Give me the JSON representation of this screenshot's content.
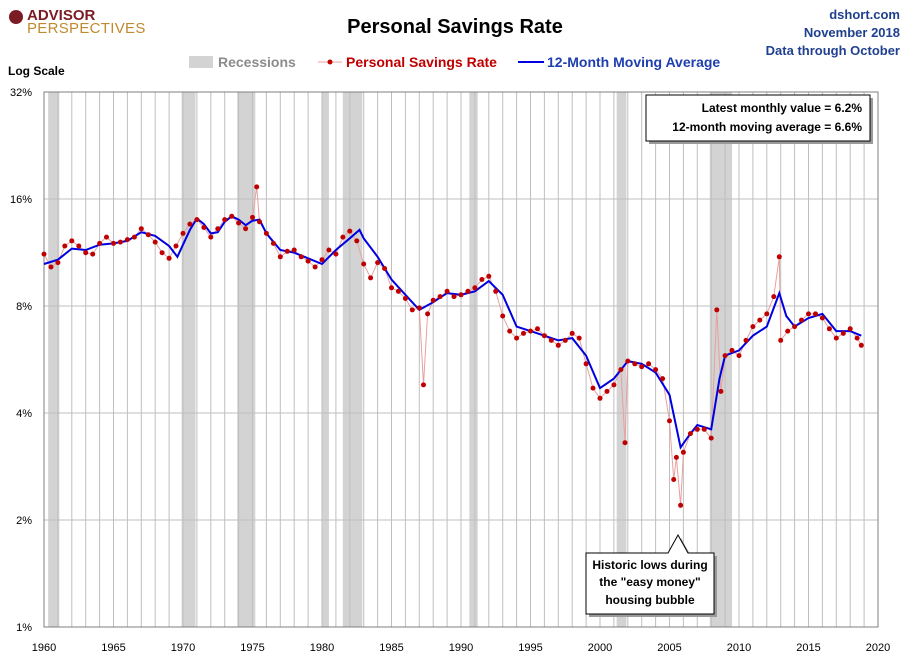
{
  "header": {
    "logo_top": "ADVISOR",
    "logo_bottom": "PERSPECTIVES",
    "title": "Personal Savings Rate",
    "source": "dshort.com",
    "date": "November 2018",
    "data_through": "Data through October"
  },
  "legend": {
    "recessions": "Recessions",
    "series": "Personal Savings Rate",
    "average": "12-Month Moving Average"
  },
  "axis_note": "Log Scale",
  "stats_box": {
    "line1": "Latest monthly value = 6.2%",
    "line2": "12-month moving average = 6.6%"
  },
  "callout": {
    "line1": "Historic lows during",
    "line2": "the \"easy money\"",
    "line3": "housing bubble"
  },
  "colors": {
    "series": "#c00000",
    "average": "#0000e0",
    "recession": "#d3d3d3",
    "grid": "#bfbfbf",
    "legend_series_text": "#c00000",
    "legend_average_text": "#1f3fb0"
  },
  "chart_data": {
    "type": "line",
    "title": "Personal Savings Rate",
    "ylabel": "Log Scale",
    "yscale": "log",
    "xlim": [
      1960,
      2020
    ],
    "ylim": [
      1,
      32
    ],
    "xticks": [
      1960,
      1965,
      1970,
      1975,
      1980,
      1985,
      1990,
      1995,
      2000,
      2005,
      2010,
      2015,
      2020
    ],
    "yticks": [
      1,
      2,
      4,
      8,
      16,
      32
    ],
    "ytick_labels": [
      "1%",
      "2%",
      "4%",
      "8%",
      "16%",
      "32%"
    ],
    "grid": true,
    "recessions": [
      [
        1960.3,
        1961.1
      ],
      [
        1969.9,
        1970.9
      ],
      [
        1973.9,
        1975.2
      ],
      [
        1980.0,
        1980.5
      ],
      [
        1981.5,
        1982.9
      ],
      [
        1990.6,
        1991.2
      ],
      [
        2001.2,
        2001.9
      ],
      [
        2007.9,
        2009.5
      ]
    ],
    "series": [
      {
        "name": "Personal Savings Rate",
        "x": [
          1960.0,
          1960.5,
          1961.0,
          1961.5,
          1962.0,
          1962.5,
          1963.0,
          1963.5,
          1964.0,
          1964.5,
          1965.0,
          1965.5,
          1966.0,
          1966.5,
          1967.0,
          1967.5,
          1968.0,
          1968.5,
          1969.0,
          1969.5,
          1970.0,
          1970.5,
          1971.0,
          1971.5,
          1972.0,
          1972.5,
          1973.0,
          1973.5,
          1974.0,
          1974.5,
          1975.0,
          1975.3,
          1975.5,
          1976.0,
          1976.5,
          1977.0,
          1977.5,
          1978.0,
          1978.5,
          1979.0,
          1979.5,
          1980.0,
          1980.5,
          1981.0,
          1981.5,
          1982.0,
          1982.5,
          1983.0,
          1983.5,
          1984.0,
          1984.5,
          1985.0,
          1985.5,
          1986.0,
          1986.5,
          1987.0,
          1987.3,
          1987.6,
          1988.0,
          1988.5,
          1989.0,
          1989.5,
          1990.0,
          1990.5,
          1991.0,
          1991.5,
          1992.0,
          1992.5,
          1993.0,
          1993.5,
          1994.0,
          1994.5,
          1995.0,
          1995.5,
          1996.0,
          1996.5,
          1997.0,
          1997.5,
          1998.0,
          1998.5,
          1999.0,
          1999.5,
          2000.0,
          2000.5,
          2001.0,
          2001.5,
          2001.8,
          2002.0,
          2002.5,
          2003.0,
          2003.5,
          2004.0,
          2004.5,
          2005.0,
          2005.3,
          2005.5,
          2005.8,
          2006.0,
          2006.5,
          2007.0,
          2007.5,
          2008.0,
          2008.4,
          2008.7,
          2009.0,
          2009.5,
          2010.0,
          2010.5,
          2011.0,
          2011.5,
          2012.0,
          2012.5,
          2012.9,
          2013.0,
          2013.5,
          2014.0,
          2014.5,
          2015.0,
          2015.5,
          2016.0,
          2016.5,
          2017.0,
          2017.5,
          2018.0,
          2018.5,
          2018.8
        ],
        "values": [
          11.2,
          10.3,
          10.6,
          11.8,
          12.2,
          11.8,
          11.3,
          11.2,
          12.0,
          12.5,
          12.0,
          12.1,
          12.3,
          12.5,
          13.2,
          12.7,
          12.1,
          11.3,
          10.9,
          11.8,
          12.8,
          13.6,
          14.0,
          13.3,
          12.5,
          13.2,
          14.0,
          14.3,
          13.7,
          13.2,
          14.2,
          17.3,
          13.8,
          12.8,
          12.0,
          11.0,
          11.4,
          11.5,
          11.0,
          10.7,
          10.3,
          10.8,
          11.5,
          11.2,
          12.5,
          13.0,
          12.2,
          10.5,
          9.6,
          10.6,
          10.2,
          9.0,
          8.8,
          8.4,
          7.8,
          7.9,
          4.8,
          7.6,
          8.3,
          8.5,
          8.8,
          8.5,
          8.6,
          8.8,
          9.0,
          9.5,
          9.7,
          8.8,
          7.5,
          6.8,
          6.5,
          6.7,
          6.8,
          6.9,
          6.6,
          6.4,
          6.2,
          6.4,
          6.7,
          6.5,
          5.5,
          4.7,
          4.4,
          4.6,
          4.8,
          5.3,
          3.3,
          5.6,
          5.5,
          5.4,
          5.5,
          5.3,
          5.0,
          3.8,
          2.6,
          3.0,
          2.2,
          3.1,
          3.5,
          3.6,
          3.6,
          3.4,
          7.8,
          4.6,
          5.8,
          6.0,
          5.8,
          6.4,
          7.0,
          7.3,
          7.6,
          8.5,
          11.0,
          6.4,
          6.8,
          7.0,
          7.3,
          7.6,
          7.6,
          7.4,
          6.9,
          6.5,
          6.7,
          6.9,
          6.5,
          6.2
        ]
      },
      {
        "name": "12-Month Moving Average",
        "x": [
          1960.0,
          1961.0,
          1962.0,
          1963.0,
          1964.0,
          1965.0,
          1966.0,
          1967.0,
          1968.0,
          1969.0,
          1969.6,
          1970.0,
          1970.5,
          1971.0,
          1971.5,
          1972.0,
          1972.5,
          1973.0,
          1973.5,
          1974.0,
          1974.5,
          1975.0,
          1975.5,
          1976.0,
          1977.0,
          1978.0,
          1979.0,
          1980.0,
          1981.0,
          1982.0,
          1982.7,
          1983.0,
          1984.0,
          1985.0,
          1986.0,
          1987.0,
          1988.0,
          1989.0,
          1990.0,
          1991.0,
          1992.0,
          1993.0,
          1994.0,
          1995.0,
          1996.0,
          1997.0,
          1998.0,
          1999.0,
          2000.0,
          2001.0,
          2002.0,
          2003.0,
          2004.0,
          2005.0,
          2005.8,
          2006.5,
          2007.0,
          2008.0,
          2008.6,
          2009.0,
          2010.0,
          2011.0,
          2012.0,
          2012.9,
          2013.4,
          2014.0,
          2015.0,
          2016.0,
          2017.0,
          2018.0,
          2018.8
        ],
        "values": [
          10.5,
          10.8,
          11.6,
          11.5,
          11.9,
          12.0,
          12.2,
          12.9,
          12.6,
          11.8,
          11.0,
          11.9,
          13.1,
          14.1,
          13.6,
          12.8,
          12.9,
          13.8,
          14.3,
          14.0,
          13.5,
          13.9,
          14.0,
          12.8,
          11.5,
          11.3,
          10.9,
          10.5,
          11.5,
          12.4,
          13.1,
          12.4,
          11.0,
          9.5,
          8.6,
          7.8,
          8.2,
          8.7,
          8.6,
          8.8,
          9.4,
          8.6,
          7.0,
          6.8,
          6.6,
          6.4,
          6.5,
          5.8,
          4.7,
          5.0,
          5.6,
          5.5,
          5.2,
          4.5,
          3.2,
          3.5,
          3.7,
          3.6,
          5.0,
          5.8,
          6.0,
          6.6,
          7.0,
          8.7,
          7.5,
          7.0,
          7.4,
          7.6,
          6.8,
          6.8,
          6.6
        ]
      }
    ],
    "annotations": [
      "Latest monthly value = 6.2%",
      "12-month moving average = 6.6%",
      "Historic lows during the \"easy money\" housing bubble"
    ]
  }
}
